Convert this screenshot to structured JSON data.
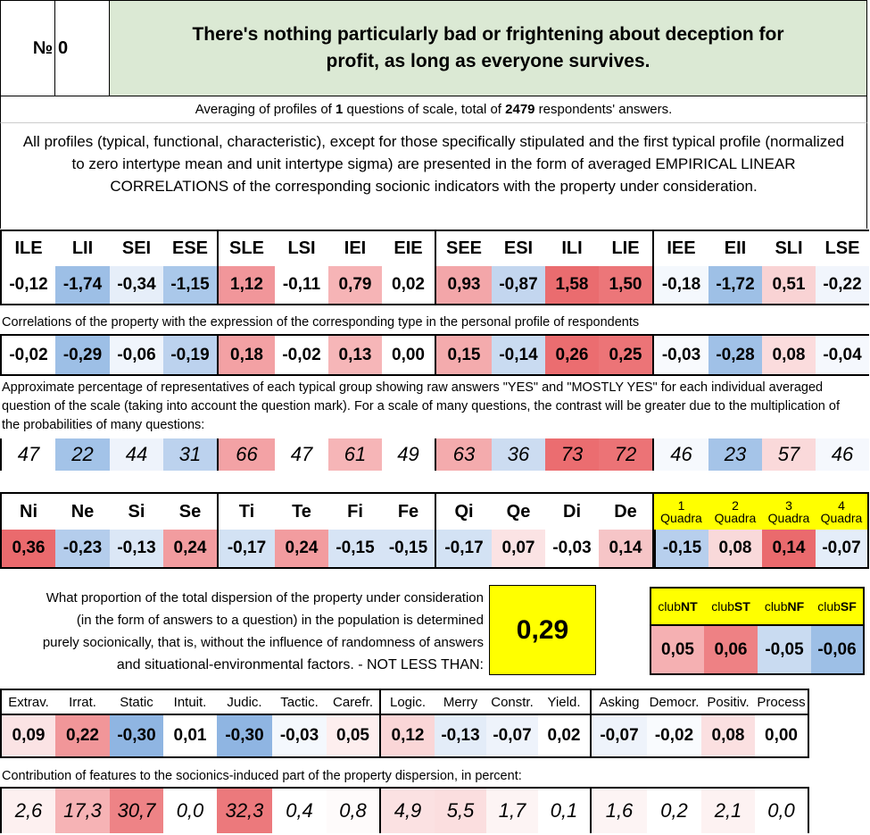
{
  "header": {
    "number_label": "№",
    "number_value": "0",
    "title": "There's nothing particularly bad or frightening about deception for profit, as long as everyone survives."
  },
  "averaging": {
    "prefix": "Averaging of profiles of ",
    "questions": "1",
    "middle": " questions of scale, total of ",
    "respondents": "2479",
    "suffix": " respondents' answers."
  },
  "profiles_note": "All profiles (typical, functional, characteristic), except for those specifically stipulated and the first typical profile (normalized to zero intertype mean and unit intertype sigma) are presented in the form of averaged EMPIRICAL LINEAR CORRELATIONS of the corresponding socionic indicators with the property under consideration.",
  "types": {
    "headers": [
      "ILE",
      "LII",
      "SEI",
      "ESE",
      "SLE",
      "LSI",
      "IEI",
      "EIE",
      "SEE",
      "ESI",
      "ILI",
      "LIE",
      "IEE",
      "EII",
      "SLI",
      "LSE"
    ],
    "values": [
      "-0,12",
      "-1,74",
      "-0,34",
      "-1,15",
      "1,12",
      "-0,11",
      "0,79",
      "0,02",
      "0,93",
      "-0,87",
      "1,58",
      "1,50",
      "-0,18",
      "-1,72",
      "0,51",
      "-0,22"
    ],
    "colors": [
      "#ffffff",
      "#9dbfe6",
      "#e6eef9",
      "#aac8ea",
      "#f1969a",
      "#ffffff",
      "#f6b4b6",
      "#ffffff",
      "#f3a6a9",
      "#c3d6ef",
      "#ea6c6f",
      "#ec7679",
      "#f4f8fd",
      "#9ec0e6",
      "#f9d3d4",
      "#f1f5fc"
    ]
  },
  "correlations_note": "Correlations of the property with the expression of the corresponding type in the personal profile of respondents",
  "correlations": {
    "values": [
      "-0,02",
      "-0,29",
      "-0,06",
      "-0,19",
      "0,18",
      "-0,02",
      "0,13",
      "0,00",
      "0,15",
      "-0,14",
      "0,26",
      "0,25",
      "-0,03",
      "-0,28",
      "0,08",
      "-0,04"
    ],
    "colors": [
      "#ffffff",
      "#9dbfe6",
      "#f0f5fc",
      "#bcd2ee",
      "#f3a1a4",
      "#ffffff",
      "#f6b6b8",
      "#ffffff",
      "#f4abad",
      "#c9dbf1",
      "#eb6d70",
      "#ec7477",
      "#f8fafd",
      "#a0c1e7",
      "#fbdcdd",
      "#f5f8fd"
    ]
  },
  "percent_note": "Approximate percentage of representatives of each typical group showing raw answers \"YES\" and \"MOSTLY YES\" for each individual averaged question of the scale (taking into account the question mark). For a scale of many questions, the contrast will be greater due to the multiplication of the probabilities of many questions:",
  "percentages": {
    "values": [
      "47",
      "22",
      "44",
      "31",
      "66",
      "47",
      "61",
      "49",
      "63",
      "36",
      "73",
      "72",
      "46",
      "23",
      "57",
      "46"
    ],
    "colors": [
      "#ffffff",
      "#a3c3e8",
      "#eef3fb",
      "#bcd2ee",
      "#f3a2a5",
      "#ffffff",
      "#f6b5b7",
      "#ffffff",
      "#f4abad",
      "#ccdcf1",
      "#eb6d70",
      "#ec7376",
      "#f6f9fd",
      "#a5c4e8",
      "#fad9da",
      "#f5f8fd"
    ]
  },
  "functions": {
    "headers": [
      "Ni",
      "Ne",
      "Si",
      "Se",
      "Ti",
      "Te",
      "Fi",
      "Fe",
      "Qi",
      "Qe",
      "Di",
      "De"
    ],
    "values": [
      "0,36",
      "-0,23",
      "-0,13",
      "0,24",
      "-0,17",
      "0,24",
      "-0,15",
      "-0,15",
      "-0,17",
      "0,07",
      "-0,03",
      "0,14"
    ],
    "colors": [
      "#ea6a6d",
      "#b4cdec",
      "#dbe7f6",
      "#f29c9f",
      "#d3e2f4",
      "#f29c9f",
      "#d7e4f5",
      "#d7e4f5",
      "#d3e2f4",
      "#fbe3e4",
      "#ffffff",
      "#f6c5c7"
    ]
  },
  "quadras": {
    "headers": [
      {
        "num": "1",
        "label": "Quadra"
      },
      {
        "num": "2",
        "label": "Quadra"
      },
      {
        "num": "3",
        "label": "Quadra"
      },
      {
        "num": "4",
        "label": "Quadra"
      }
    ],
    "values": [
      "-0,15",
      "0,08",
      "0,14",
      "-0,07"
    ],
    "colors": [
      "#b7cfed",
      "#f9d9da",
      "#ea6a6d",
      "#e4edf9"
    ],
    "header_bg": "#ffff00"
  },
  "dispersion": {
    "text": [
      "What proportion of the total dispersion of the property under consideration",
      "(in the form of answers to a question) in the population is determined",
      "purely socionically, that is, without the influence of randomness of answers",
      "and situational-environmental factors. - NOT LESS THAN:"
    ],
    "value": "0,29",
    "value_bg": "#ffff00"
  },
  "clubs": {
    "headers": [
      {
        "pre": "club",
        "bold": "NT"
      },
      {
        "pre": "club",
        "bold": "ST"
      },
      {
        "pre": "club",
        "bold": "NF"
      },
      {
        "pre": "club",
        "bold": "SF"
      }
    ],
    "values": [
      "0,05",
      "0,06",
      "-0,05",
      "-0,06"
    ],
    "colors": [
      "#f5b0b2",
      "#ee8184",
      "#c9dbf1",
      "#9dbfe6"
    ]
  },
  "traits": {
    "headers": [
      "Extrav.",
      "Irrat.",
      "Static",
      "Intuit.",
      "Judic.",
      "Tactic.",
      "Carefr.",
      "Logic.",
      "Merry",
      "Constr.",
      "Yield.",
      "Asking",
      "Democr.",
      "Positiv.",
      "Process"
    ],
    "values": [
      "0,09",
      "0,22",
      "-0,30",
      "0,01",
      "-0,30",
      "-0,03",
      "0,05",
      "0,12",
      "-0,13",
      "-0,07",
      "0,02",
      "-0,07",
      "-0,02",
      "0,08",
      "0,00"
    ],
    "colors": [
      "#fbe3e4",
      "#f19699",
      "#8fb5e2",
      "#ffffff",
      "#8fb5e2",
      "#f4f8fd",
      "#fdeeee",
      "#fad6d7",
      "#e3ecf8",
      "#eef3fb",
      "#ffffff",
      "#eef3fb",
      "#f9fbfe",
      "#fbe0e1",
      "#ffffff"
    ]
  },
  "contribution_note": "Contribution of features to the sociоnics-induced part of the property dispersion, in percent:",
  "contributions": {
    "values": [
      "2,6",
      "17,3",
      "30,7",
      "0,0",
      "32,3",
      "0,4",
      "0,8",
      "4,9",
      "5,5",
      "1,7",
      "0,1",
      "1,6",
      "0,2",
      "2,1",
      "0,0"
    ],
    "colors": [
      "#fdf0f0",
      "#f6b3b5",
      "#ee8386",
      "#ffffff",
      "#ec797c",
      "#ffffff",
      "#fefbfb",
      "#fbe1e2",
      "#fbdedf",
      "#fdf4f4",
      "#ffffff",
      "#fdf4f4",
      "#ffffff",
      "#fdf2f2",
      "#ffffff"
    ]
  }
}
